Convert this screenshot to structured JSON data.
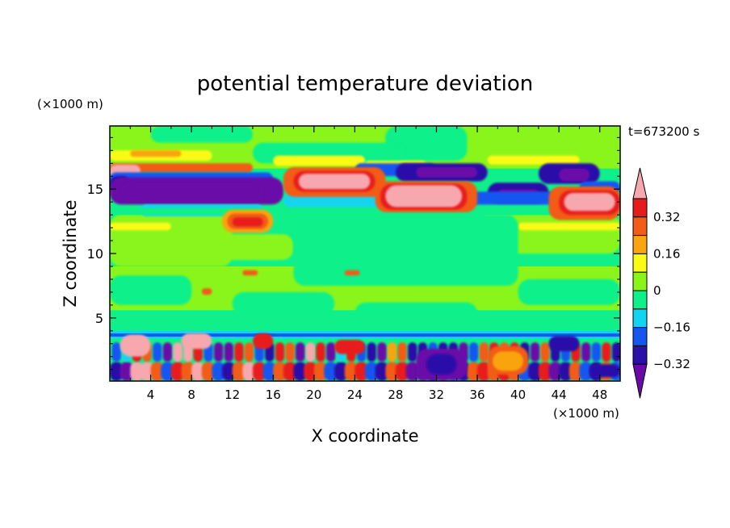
{
  "chart_data": {
    "type": "heatmap",
    "title": "potential temperature deviation",
    "xlabel": "X coordinate",
    "ylabel": "Z coordinate",
    "x_unit": "(×1000 m)",
    "y_unit": "(×1000 m)",
    "time_label": "t=673200 s",
    "xlim": [
      0,
      50
    ],
    "ylim": [
      0.1,
      19.9
    ],
    "x_ticks": [
      4,
      8,
      12,
      16,
      20,
      24,
      28,
      32,
      36,
      40,
      44,
      48
    ],
    "y_ticks": [
      5,
      10,
      15
    ],
    "colorbar": {
      "levels": [
        -0.4,
        -0.32,
        -0.24,
        -0.16,
        -0.08,
        0,
        0.08,
        0.16,
        0.24,
        0.32,
        0.4
      ],
      "labeled_levels": [
        "0.32",
        "0.16",
        "0",
        "−0.16",
        "−0.32"
      ],
      "colors_low_to_high": [
        "#6a0ba8",
        "#2a0fa8",
        "#1656f0",
        "#13d4f0",
        "#10f08a",
        "#8af51a",
        "#fbfa12",
        "#f9a410",
        "#f25c16",
        "#e81b1b",
        "#f7a7ae"
      ]
    },
    "background_level_index": 4,
    "features": [
      {
        "x": [
          0,
          50
        ],
        "z": [
          9,
          13
        ],
        "level_index": 4
      },
      {
        "x": [
          0,
          50
        ],
        "z": [
          5.5,
          9
        ],
        "level_index": 5
      },
      {
        "x": [
          0,
          50
        ],
        "z": [
          16.5,
          19.9
        ],
        "level_index": 5
      },
      {
        "x": [
          0,
          8
        ],
        "z": [
          14,
          15.7
        ],
        "level_index": 0
      },
      {
        "x": [
          0,
          3
        ],
        "z": [
          15.8,
          17.2
        ],
        "level_index": 10
      },
      {
        "x": [
          18,
          27
        ],
        "z": [
          14.5,
          16.6
        ],
        "level_index": 10
      },
      {
        "x": [
          26,
          35
        ],
        "z": [
          13.3,
          15.5
        ],
        "level_index": 10
      },
      {
        "x": [
          44,
          50
        ],
        "z": [
          12.8,
          15
        ],
        "level_index": 10
      },
      {
        "x": [
          11,
          16
        ],
        "z": [
          11.5,
          13.5
        ],
        "level_index": 8
      },
      {
        "x": [
          28,
          37
        ],
        "z": [
          15.6,
          17
        ],
        "level_index": 1
      },
      {
        "x": [
          44,
          48
        ],
        "z": [
          15.5,
          17
        ],
        "level_index": 1
      },
      {
        "x": [
          38,
          43
        ],
        "z": [
          14,
          15.5
        ],
        "level_index": 0
      },
      {
        "x": [
          0,
          50
        ],
        "z": [
          0.1,
          3.6
        ],
        "level_index": "mixed"
      }
    ]
  }
}
